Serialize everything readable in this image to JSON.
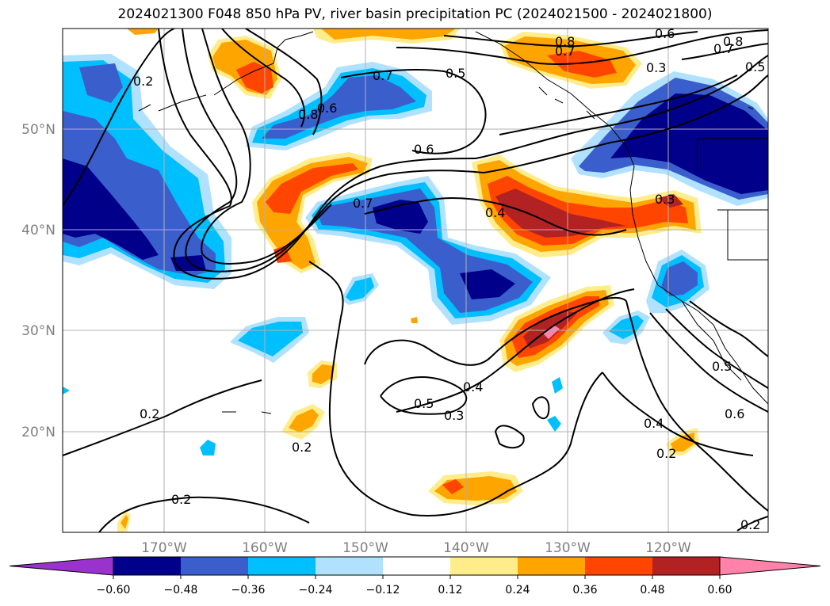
{
  "title": "2024021300 F048 850 hPa PV, river basin precipitation PC (2024021500 - 2024021800)",
  "map": {
    "lat_ticks": [
      "50°N",
      "40°N",
      "30°N",
      "20°N"
    ],
    "lon_ticks": [
      "170°W",
      "160°W",
      "150°W",
      "140°W",
      "130°W",
      "120°W"
    ],
    "grid": true,
    "land_color": "#ffffff",
    "coastline_color": "#000000"
  },
  "fill_colors": {
    "lt_-0.60": "#9a32cd",
    "-0.60_-0.48": "#00008b",
    "-0.48_-0.36": "#3a5fcd",
    "-0.36_-0.24": "#00bfff",
    "-0.24_-0.12": "#b0e2ff",
    "-0.12_0.12": "#ffffff",
    "0.12_0.24": "#ffec8b",
    "0.24_0.36": "#ffa500",
    "0.36_0.48": "#ff4500",
    "0.48_0.60": "#b22222",
    "gt_0.60": "#ff82ab"
  },
  "colorbar": {
    "colors": [
      "#9a32cd",
      "#00008b",
      "#3a5fcd",
      "#00bfff",
      "#b0e2ff",
      "#ffffff",
      "#ffec8b",
      "#ffa500",
      "#ff4500",
      "#b22222",
      "#ff82ab"
    ],
    "tick_labels": [
      "−0.60",
      "−0.48",
      "−0.36",
      "−0.24",
      "−0.12",
      "0.12",
      "0.24",
      "0.36",
      "0.48",
      "0.60"
    ]
  },
  "contour_labels": [
    "0.2",
    "0.8",
    "0.7",
    "0.5",
    "0.6",
    "0.8",
    "0.7",
    "0.8",
    "0.7",
    "0.6",
    "0.5",
    "0.3",
    "0.6",
    "0.7",
    "0.4",
    "0.3",
    "0.5",
    "0.4",
    "0.3",
    "0.2",
    "0.2",
    "0.2",
    "0.5",
    "0.6",
    "0.4",
    "0.2",
    "0.2"
  ]
}
